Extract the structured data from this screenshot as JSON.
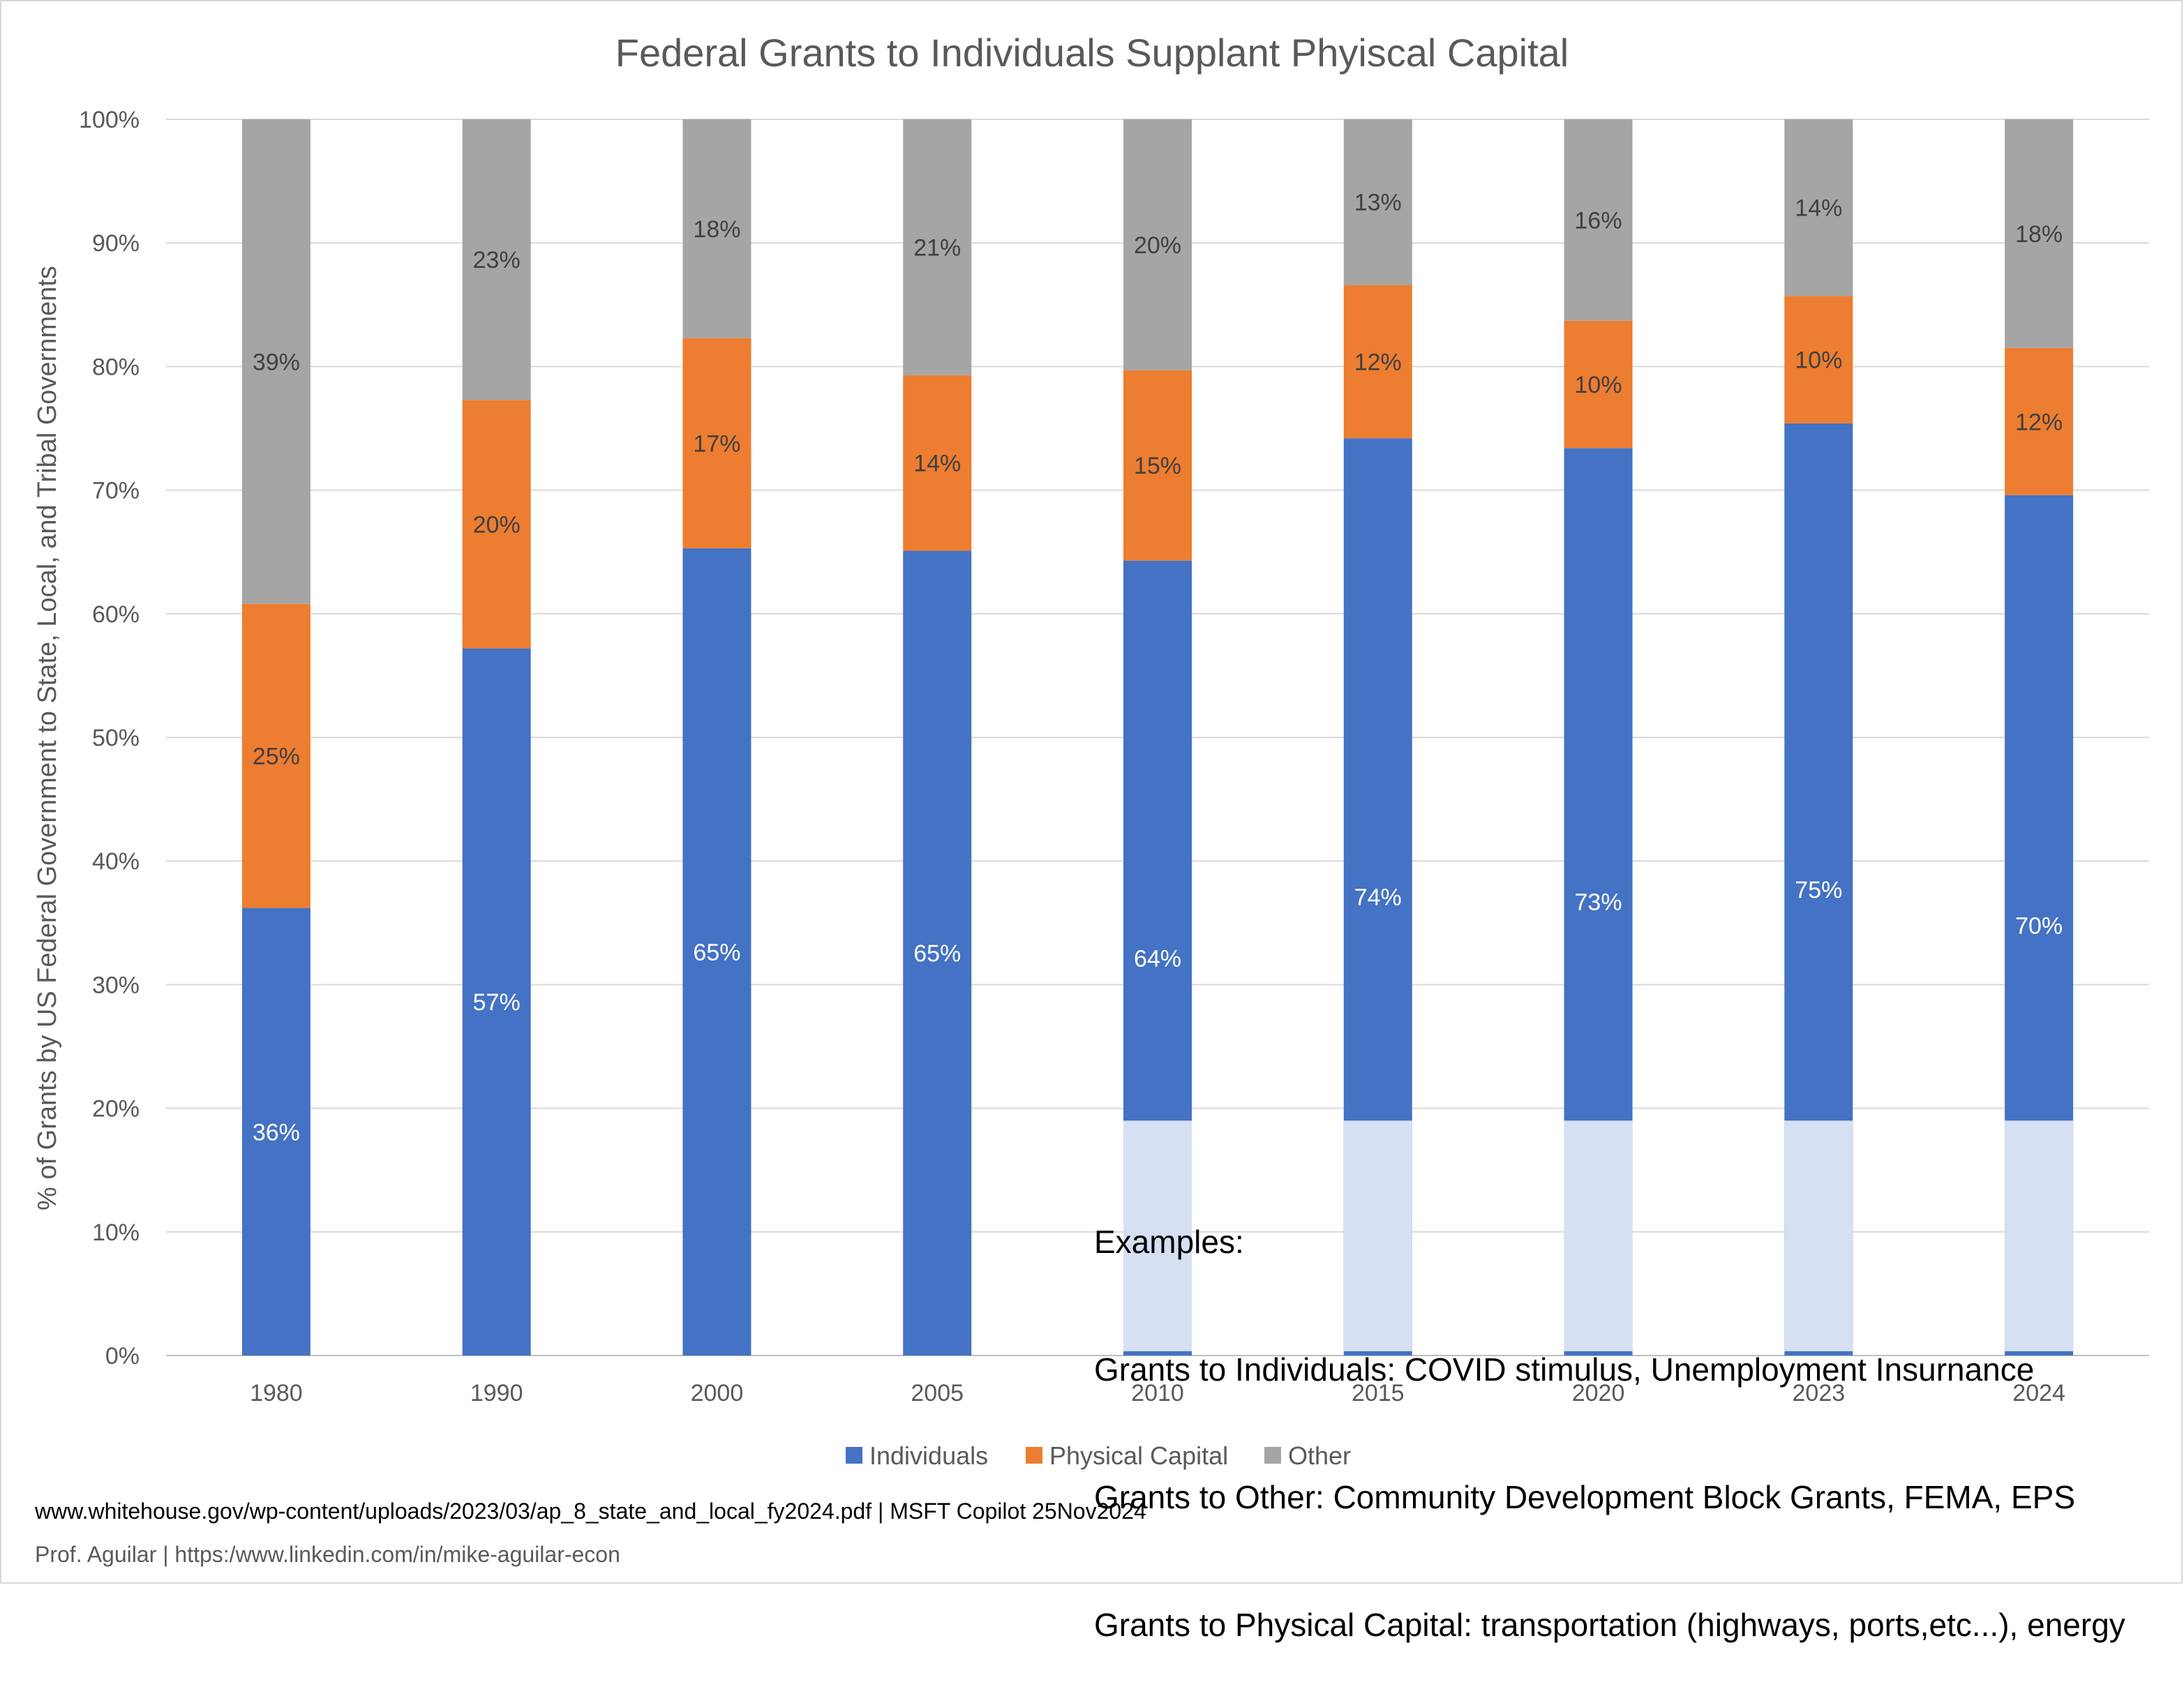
{
  "chart_data": {
    "type": "bar",
    "stacked": true,
    "title": "Federal Grants to Individuals Supplant Phyiscal Capital",
    "ylabel": "% of Grants by US Federal Government to State, Local, and Tribal Governments",
    "xlabel": "",
    "ylim": [
      0,
      100
    ],
    "yticks": [
      "0%",
      "10%",
      "20%",
      "30%",
      "40%",
      "50%",
      "60%",
      "70%",
      "80%",
      "90%",
      "100%"
    ],
    "categories": [
      "1980",
      "1990",
      "2000",
      "2005",
      "2010",
      "2015",
      "2020",
      "2023",
      "2024"
    ],
    "series": [
      {
        "name": "Individuals",
        "color": "#4472C4",
        "label_color": "#ffffff",
        "values": [
          36.2,
          57.2,
          65.3,
          65.1,
          64.3,
          74.2,
          73.4,
          75.4,
          69.6
        ],
        "labels": [
          "36%",
          "57%",
          "65%",
          "65%",
          "64%",
          "74%",
          "73%",
          "75%",
          "70%"
        ]
      },
      {
        "name": "Physical Capital",
        "color": "#ED7D31",
        "label_color": "#404040",
        "values": [
          24.6,
          20.1,
          17.0,
          14.2,
          15.4,
          12.4,
          10.3,
          10.3,
          11.9
        ],
        "labels": [
          "25%",
          "20%",
          "17%",
          "14%",
          "15%",
          "12%",
          "10%",
          "10%",
          "12%"
        ]
      },
      {
        "name": "Other",
        "color": "#A5A5A5",
        "label_color": "#404040",
        "values": [
          39.2,
          22.7,
          17.7,
          20.7,
          20.3,
          13.4,
          16.3,
          14.3,
          18.5
        ],
        "labels": [
          "39%",
          "23%",
          "18%",
          "21%",
          "20%",
          "13%",
          "16%",
          "14%",
          "18%"
        ]
      }
    ],
    "grid": true,
    "legend_position": "bottom"
  },
  "annotation": {
    "lines": [
      "Examples:",
      "Grants to Individuals: COVID stimulus, Unemployment Insurnance",
      "Grants to Other: Community Development Block Grants, FEMA, EPS",
      "Grants to Physical Capital: transportation (highways, ports,etc...), energy"
    ],
    "box_color": "#D6E0F2"
  },
  "footer": {
    "source": "www.whitehouse.gov/wp-content/uploads/2023/03/ap_8_state_and_local_fy2024.pdf | MSFT Copilot 25Nov2024",
    "credit": "Prof. Aguilar | https:/www.linkedin.com/in/mike-aguilar-econ"
  },
  "colors": {
    "gridline": "#D9D9D9",
    "axis_text": "#595959"
  }
}
